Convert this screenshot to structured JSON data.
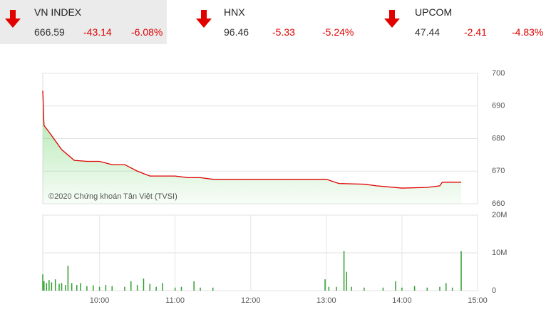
{
  "header": {
    "indices": [
      {
        "name": "VN INDEX",
        "value": "666.59",
        "change": "-43.14",
        "pct": "-6.08%"
      },
      {
        "name": "HNX",
        "value": "96.46",
        "change": "-5.33",
        "pct": "-5.24%"
      },
      {
        "name": "UPCOM",
        "value": "47.44",
        "change": "-2.41",
        "pct": "-4.83%"
      }
    ]
  },
  "chart_data": [
    {
      "type": "line",
      "annotation": "©2020 Chứng khoán Tân Việt (TVSI)",
      "color": "#e00000",
      "area_color": "#5fcf5f",
      "xlim": [
        "09:15",
        "15:00"
      ],
      "ylim": [
        660,
        700
      ],
      "yticks": [
        700,
        690,
        680,
        670,
        660
      ],
      "grid": true,
      "x": [
        "09:15",
        "09:16",
        "09:20",
        "09:30",
        "09:40",
        "09:50",
        "10:00",
        "10:10",
        "10:20",
        "10:30",
        "10:40",
        "10:50",
        "11:00",
        "11:10",
        "11:20",
        "11:30",
        "12:00",
        "13:00",
        "13:10",
        "13:30",
        "13:40",
        "14:00",
        "14:20",
        "14:30",
        "14:32",
        "14:47"
      ],
      "values": [
        694.7,
        684,
        682,
        676.6,
        673.3,
        673,
        673,
        672,
        672,
        670,
        668.5,
        668.5,
        668.5,
        668,
        668,
        667.5,
        667.5,
        667.5,
        666.2,
        666,
        665.5,
        664.8,
        665,
        665.5,
        666.6,
        666.6
      ]
    },
    {
      "type": "bar",
      "color": "#2e9e2e",
      "xlim": [
        "09:15",
        "15:00"
      ],
      "xticks": [
        "10:00",
        "11:00",
        "12:00",
        "13:00",
        "14:00",
        "15:00"
      ],
      "ylim": [
        0,
        20000000
      ],
      "yticks": [
        {
          "value": 20000000,
          "label": "20M"
        },
        {
          "value": 10000000,
          "label": "10M"
        },
        0
      ],
      "grid": true,
      "x": [
        "09:15",
        "09:16",
        "09:18",
        "09:20",
        "09:22",
        "09:25",
        "09:28",
        "09:30",
        "09:33",
        "09:35",
        "09:38",
        "09:42",
        "09:45",
        "09:50",
        "09:55",
        "10:00",
        "10:05",
        "10:10",
        "10:20",
        "10:25",
        "10:30",
        "10:35",
        "10:40",
        "10:45",
        "10:50",
        "11:00",
        "11:05",
        "11:15",
        "11:20",
        "11:30",
        "12:59",
        "13:02",
        "13:08",
        "13:14",
        "13:16",
        "13:20",
        "13:30",
        "13:45",
        "13:55",
        "14:00",
        "14:10",
        "14:20",
        "14:30",
        "14:35",
        "14:40",
        "14:47"
      ],
      "values": [
        4300000,
        2500000,
        2000000,
        2800000,
        2200000,
        3000000,
        1800000,
        2000000,
        1500000,
        6600000,
        2000000,
        1500000,
        2000000,
        1200000,
        1400000,
        1000000,
        1500000,
        1200000,
        1000000,
        2500000,
        1500000,
        3200000,
        1800000,
        1000000,
        2000000,
        800000,
        1000000,
        2500000,
        800000,
        800000,
        3000000,
        1000000,
        1000000,
        10500000,
        5000000,
        1000000,
        800000,
        800000,
        2500000,
        800000,
        1200000,
        800000,
        1000000,
        2000000,
        800000,
        10500000
      ]
    }
  ]
}
